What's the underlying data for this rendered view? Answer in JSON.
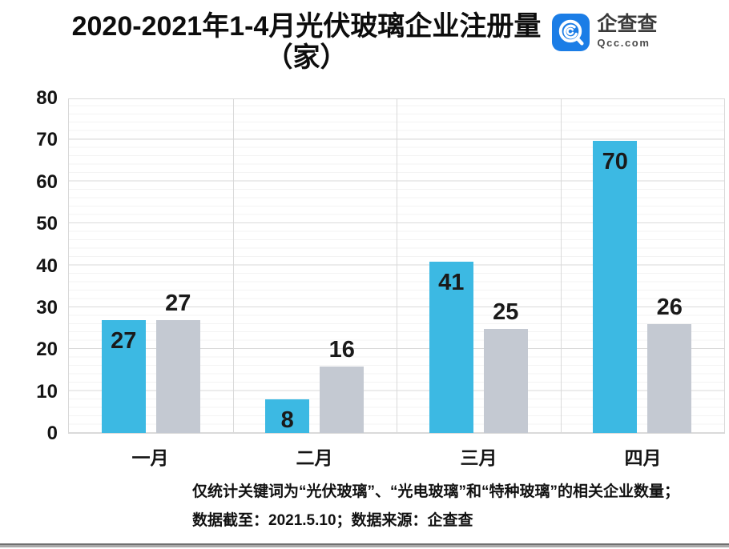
{
  "header": {
    "title_line1": "2020-2021年1-4月光伏玻璃企业注册量",
    "title_line2": "（家）",
    "logo": {
      "icon": "qcc-app-icon",
      "icon_color": "#1b7de6",
      "text": "企查查",
      "subtext": "Qcc.com"
    }
  },
  "chart_data": {
    "type": "bar",
    "title": "2020-2021年1-4月光伏玻璃企业注册量（家）",
    "categories": [
      "一月",
      "二月",
      "三月",
      "四月"
    ],
    "series": [
      {
        "name": "series-blue",
        "color": "#3cb9e3",
        "values": [
          27,
          8,
          41,
          70
        ],
        "label_position": "inside-top"
      },
      {
        "name": "series-gray",
        "color": "#c4c9d2",
        "values": [
          27,
          16,
          25,
          26
        ],
        "label_position": "above"
      }
    ],
    "ylim": [
      0,
      80
    ],
    "yticks": [
      0,
      10,
      20,
      30,
      40,
      50,
      60,
      70,
      80
    ],
    "minor_grid_step": 2,
    "grid": true,
    "legend_position": "none",
    "grid_major_color": "#dadada",
    "grid_minor_color": "#f3f3f3",
    "value_label_color": "#1a1a1a"
  },
  "footer": {
    "line1": "仅统计关键词为“光伏玻璃”、“光电玻璃”和“特种玻璃”的相关企业数量；",
    "line2": "数据截至：2021.5.10；数据来源：企查查"
  }
}
